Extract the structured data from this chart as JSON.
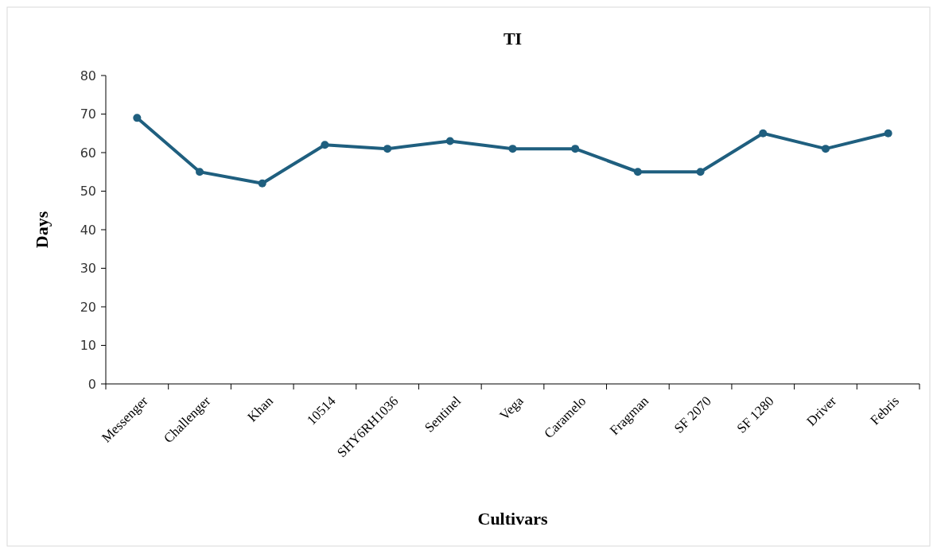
{
  "chart_data": {
    "type": "line",
    "title": "TI",
    "xlabel": "Cultivars",
    "ylabel": "Days",
    "categories": [
      "Messenger",
      "Challenger",
      "Khan",
      "10514",
      "SHY6RH1036",
      "Sentinel",
      "Vega",
      "Caramelo",
      "Fragman",
      "SF 2070",
      "SF 1280",
      "Driver",
      "Febris"
    ],
    "series": [
      {
        "color": "#1f5f7f",
        "values": [
          69,
          55,
          52,
          62,
          61,
          63,
          61,
          61,
          55,
          55,
          65,
          61,
          65
        ]
      }
    ],
    "ylim": [
      0,
      80
    ],
    "yticks": [
      0,
      10,
      20,
      30,
      40,
      50,
      60,
      70,
      80
    ],
    "grid": false,
    "marker": "circle",
    "line_style": "solid"
  }
}
